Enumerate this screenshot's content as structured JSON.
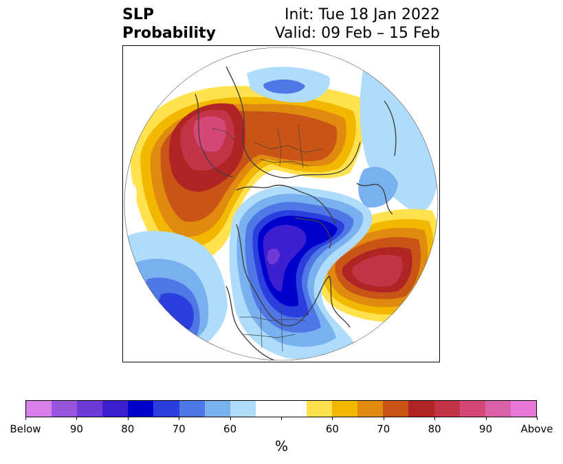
{
  "title": {
    "left_line1": "SLP",
    "left_line2": "Probability",
    "right_line1": "Init: Tue 18 Jan 2022",
    "right_line2": "Valid: 09 Feb – 15 Feb"
  },
  "colorbar": {
    "colors": [
      "#d87ee8",
      "#9a55e0",
      "#6d3ad8",
      "#3d1fcf",
      "#0000cc",
      "#2a3fdc",
      "#4f78e6",
      "#78b0f0",
      "#aedcfa",
      "#ffffff",
      "#ffffff",
      "#ffe24d",
      "#f2b800",
      "#e08a10",
      "#c85416",
      "#b02424",
      "#c43348",
      "#d44878",
      "#da60a8",
      "#e878d8"
    ],
    "tick_labels": [
      "Below",
      "90",
      "80",
      "70",
      "60",
      "",
      "60",
      "70",
      "80",
      "90",
      "Above"
    ],
    "units": "%"
  },
  "map": {
    "projection": "north-polar-stereographic",
    "variable": "sea level pressure tercile probability"
  }
}
